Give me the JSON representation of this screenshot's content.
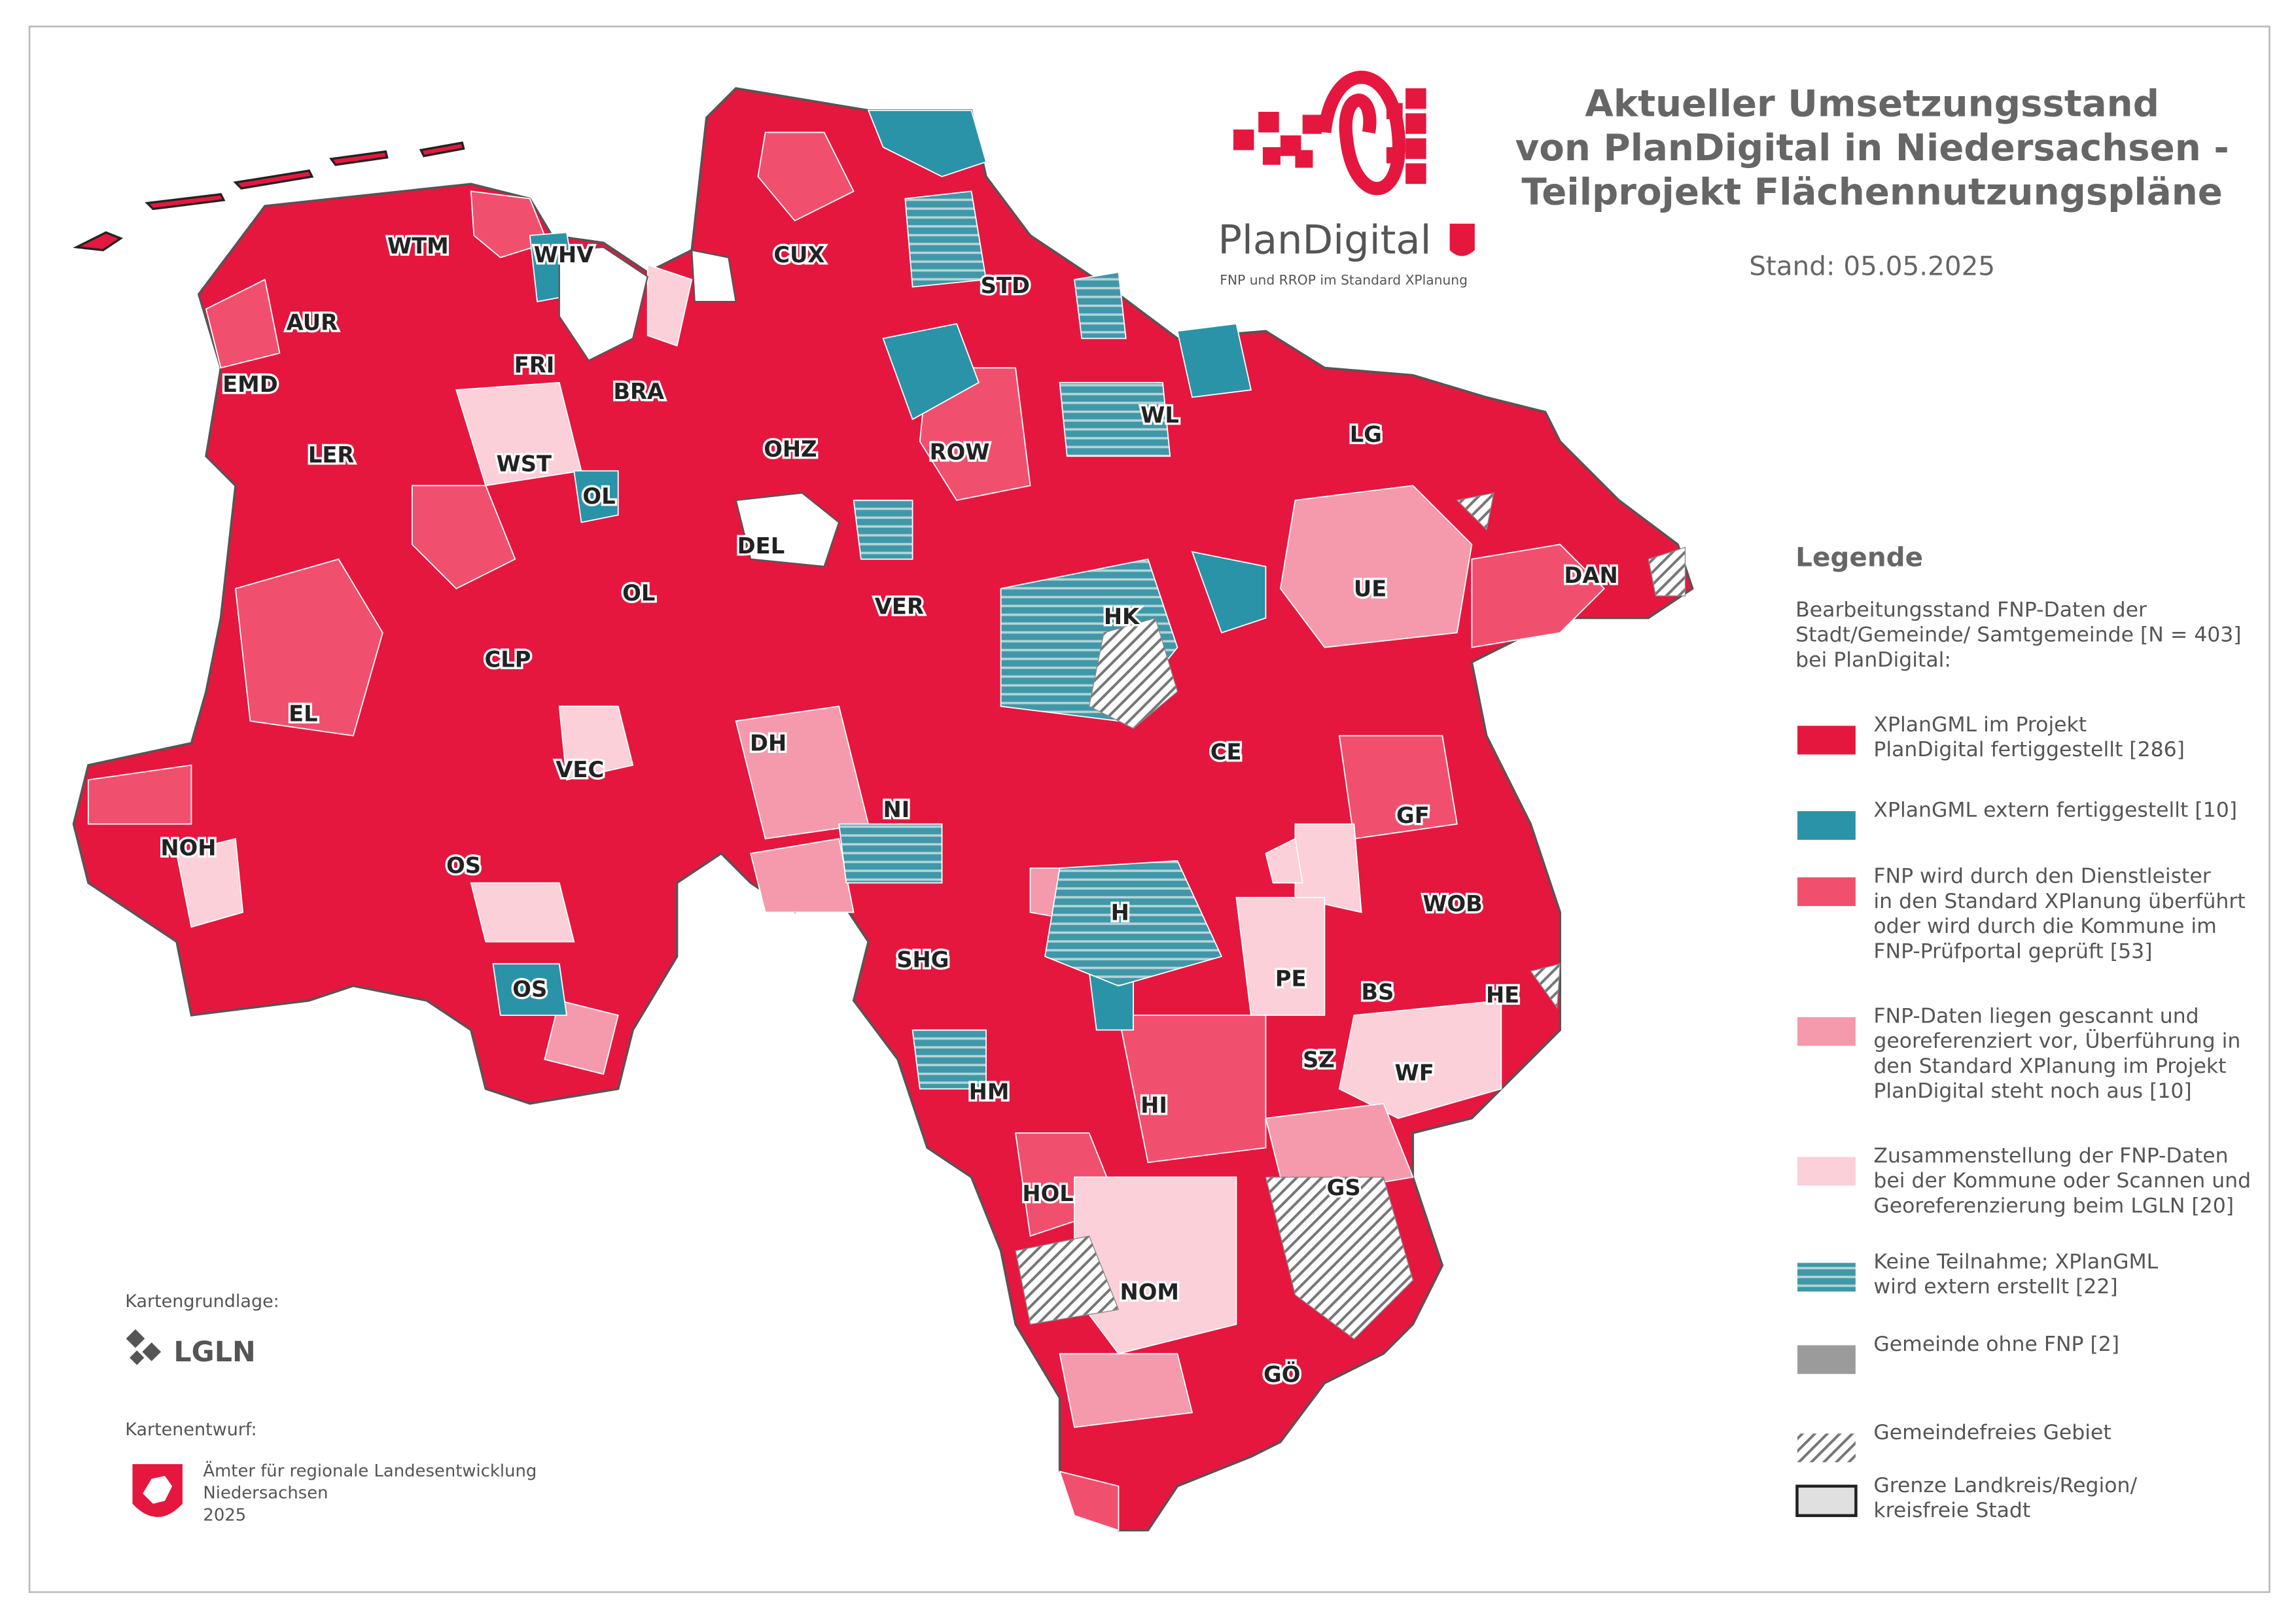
{
  "title": [
    "Aktueller Umsetzungsstand",
    "von PlanDigital in Niedersachsen -",
    "Teilprojekt Flächennutzungspläne"
  ],
  "date": "Stand: 05.05.2025",
  "logo": {
    "name": "PlanDigital",
    "subtitle": "FNP und RROP im Standard XPlanung"
  },
  "legend": {
    "title": "Legende",
    "description": [
      "Bearbeitungsstand FNP-Daten der",
      "Stadt/Gemeinde/ Samtgemeinde [N = 403]",
      "bei PlanDigital:"
    ],
    "items": [
      {
        "label": [
          "XPlanGML im Projekt",
          "PlanDigital fertiggestellt [286]"
        ],
        "color": "#e5173f",
        "style": "fill"
      },
      {
        "label": [
          "XPlanGML extern fertiggestellt [10]"
        ],
        "color": "#2a93a7",
        "style": "fill"
      },
      {
        "label": [
          "FNP wird durch den Dienstleister",
          "in den Standard XPlanung überführt",
          "oder wird durch die Kommune im",
          "FNP-Prüfportal geprüft [53]"
        ],
        "color": "#f0506e",
        "style": "fill"
      },
      {
        "label": [
          "FNP-Daten liegen gescannt und",
          "georeferenziert vor, Überführung in",
          "den Standard XPlanung im Projekt",
          "PlanDigital steht noch aus [10]"
        ],
        "color": "#f59aac",
        "style": "fill"
      },
      {
        "label": [
          "Zusammenstellung der FNP-Daten",
          "bei der Kommune oder Scannen und",
          "Georeferenzierung beim LGLN [20]"
        ],
        "color": "#fbd0d9",
        "style": "fill"
      },
      {
        "label": [
          "Keine Teilnahme; XPlanGML",
          "wird extern erstellt [22]"
        ],
        "color": "#5f9aa6",
        "style": "striped"
      },
      {
        "label": [
          "Gemeinde ohne FNP [2]"
        ],
        "color": "#9b9b9b",
        "style": "fill"
      },
      {
        "label": [
          "Gemeindefreies Gebiet"
        ],
        "color": "#777777",
        "style": "hatched"
      },
      {
        "label": [
          "Grenze Landkreis/Region/",
          "kreisfreie Stadt"
        ],
        "color": "#e0e0e0",
        "style": "outline"
      }
    ]
  },
  "districts": [
    "WTM",
    "WHV",
    "CUX",
    "STD",
    "AUR",
    "FRI",
    "EMD",
    "BRA",
    "LER",
    "WST",
    "OHZ",
    "ROW",
    "WL",
    "LG",
    "OL",
    "DEL",
    "OL",
    "VER",
    "DAN",
    "UE",
    "HK",
    "CLP",
    "EL",
    "DH",
    "CE",
    "VEC",
    "NI",
    "GF",
    "NOH",
    "OS",
    "WOB",
    "H",
    "SHG",
    "PE",
    "BS",
    "HE",
    "OS",
    "SZ",
    "WF",
    "HM",
    "HI",
    "HOL",
    "GS",
    "NOM",
    "GÖ"
  ],
  "credits": {
    "basemap_label": "Kartengrundlage:",
    "basemap": "LGLN",
    "design_label": "Kartenentwurf:",
    "design": [
      "Ämter für regionale Landesentwicklung",
      "Niedersachsen",
      "2025"
    ]
  }
}
